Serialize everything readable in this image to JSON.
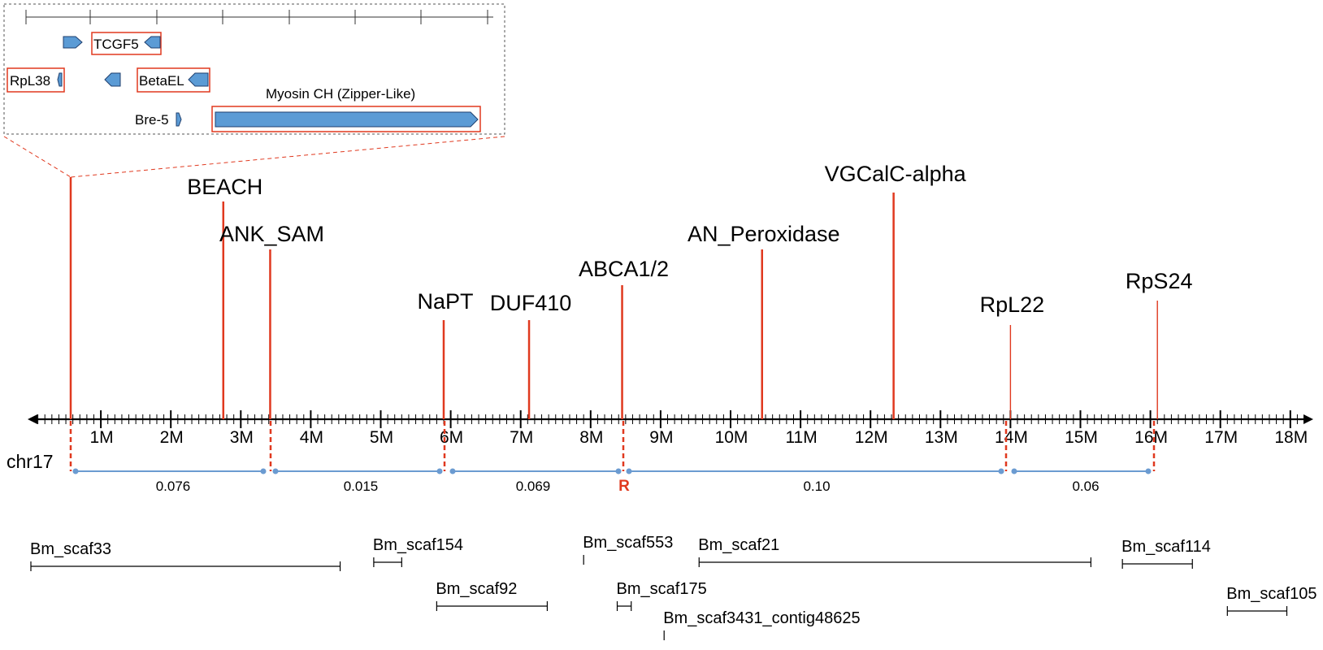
{
  "chromosome": {
    "name": "chr17",
    "ticks": [
      "1M",
      "2M",
      "3M",
      "4M",
      "5M",
      "6M",
      "7M",
      "8M",
      "9M",
      "10M",
      "11M",
      "12M",
      "13M",
      "14M",
      "15M",
      "16M",
      "17M",
      "18M"
    ]
  },
  "genes": [
    {
      "label": "BEACH",
      "pos": 2.75
    },
    {
      "label": "ANK_SAM",
      "pos": 3.42
    },
    {
      "label": "NaPT",
      "pos": 5.9
    },
    {
      "label": "DUF410",
      "pos": 7.12
    },
    {
      "label": "ABCA1/2",
      "pos": 8.45
    },
    {
      "label": "AN_Peroxidase",
      "pos": 10.45
    },
    {
      "label": "VGCalC-alpha",
      "pos": 12.33
    },
    {
      "label": "RpL22",
      "pos": 14.0
    },
    {
      "label": "RpS24",
      "pos": 16.1
    }
  ],
  "recombination_segments": [
    "0.076",
    "0.015",
    "0.069",
    "0.10",
    "0.06"
  ],
  "recombination_marker": "R",
  "scaffolds": [
    {
      "label": "Bm_scaf33",
      "start": 0.0,
      "end": 4.42
    },
    {
      "label": "Bm_scaf154",
      "start": 4.9,
      "end": 5.3
    },
    {
      "label": "Bm_scaf92",
      "start": 5.8,
      "end": 7.38
    },
    {
      "label": "Bm_scaf553",
      "start": 7.9,
      "end": 7.9
    },
    {
      "label": "Bm_scaf175",
      "start": 8.38,
      "end": 8.58
    },
    {
      "label": "Bm_scaf3431_contig48625",
      "start": 9.05,
      "end": 9.05
    },
    {
      "label": "Bm_scaf21",
      "start": 9.55,
      "end": 15.15
    },
    {
      "label": "Bm_scaf114",
      "start": 15.6,
      "end": 16.6
    },
    {
      "label": "Bm_scaf105",
      "start": 17.1,
      "end": 17.95
    }
  ],
  "inset": {
    "genes": [
      "TCGF5",
      "RpL38",
      "BetaEL",
      "Bre-5",
      "Myosin CH (Zipper-Like)"
    ]
  },
  "colors": {
    "gene_line": "#e0391f",
    "segment_line": "#6b9bd1",
    "gene_box": "#5b9bd5",
    "highlight_box": "#e0391f",
    "axis": "#000000"
  }
}
